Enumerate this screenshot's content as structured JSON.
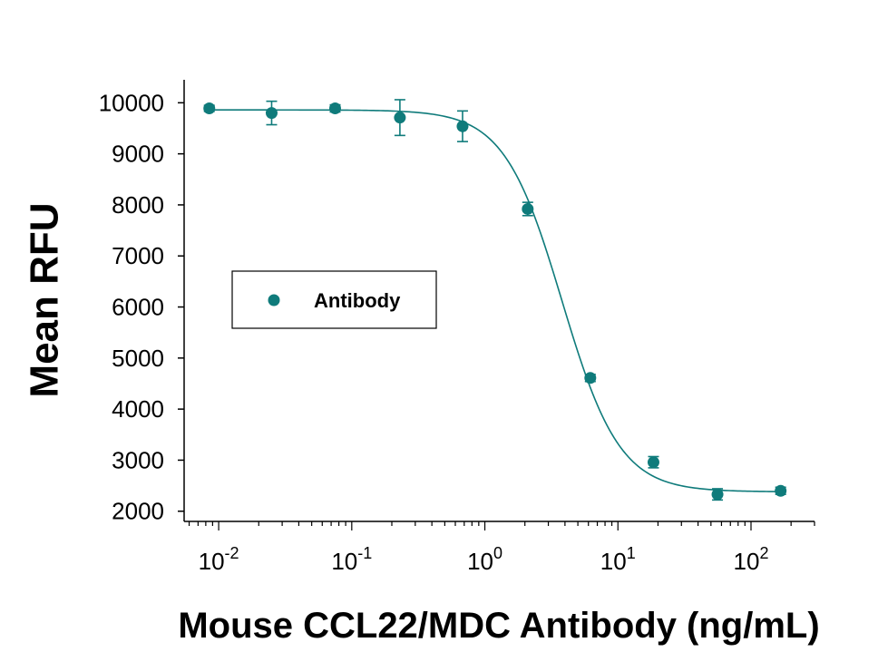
{
  "chart_data": {
    "type": "scatter",
    "xlabel": "Mouse CCL22/MDC Antibody (ng/mL)",
    "ylabel": "Mean RFU",
    "x_scale": "log",
    "xlim": [
      0.0055,
      300
    ],
    "ylim": [
      1800,
      10450
    ],
    "y_ticks": [
      2000,
      3000,
      4000,
      5000,
      6000,
      7000,
      8000,
      9000,
      10000
    ],
    "x_ticks": [
      {
        "value": 0.01,
        "base": "10",
        "exp": "-2"
      },
      {
        "value": 0.1,
        "base": "10",
        "exp": "-1"
      },
      {
        "value": 1,
        "base": "10",
        "exp": "0"
      },
      {
        "value": 10,
        "base": "10",
        "exp": "1"
      },
      {
        "value": 100,
        "base": "10",
        "exp": "2"
      }
    ],
    "series": [
      {
        "name": "Antibody",
        "color": "#0f7b7b",
        "points": [
          {
            "x": 0.0085,
            "y": 9890,
            "err": 60
          },
          {
            "x": 0.025,
            "y": 9800,
            "err": 230
          },
          {
            "x": 0.075,
            "y": 9890,
            "err": 70
          },
          {
            "x": 0.23,
            "y": 9710,
            "err": 350
          },
          {
            "x": 0.68,
            "y": 9540,
            "err": 300
          },
          {
            "x": 2.1,
            "y": 7920,
            "err": 130
          },
          {
            "x": 6.2,
            "y": 4610,
            "err": 70
          },
          {
            "x": 18.5,
            "y": 2960,
            "err": 110
          },
          {
            "x": 56,
            "y": 2330,
            "err": 110
          },
          {
            "x": 167,
            "y": 2400,
            "err": 70
          }
        ],
        "fit": {
          "model": "4PL",
          "top": 9860,
          "bottom": 2380,
          "ec50": 3.8,
          "hill": 2.0
        }
      }
    ],
    "legend": {
      "position": "left-middle",
      "entries": [
        "Antibody"
      ]
    },
    "grid": false
  }
}
